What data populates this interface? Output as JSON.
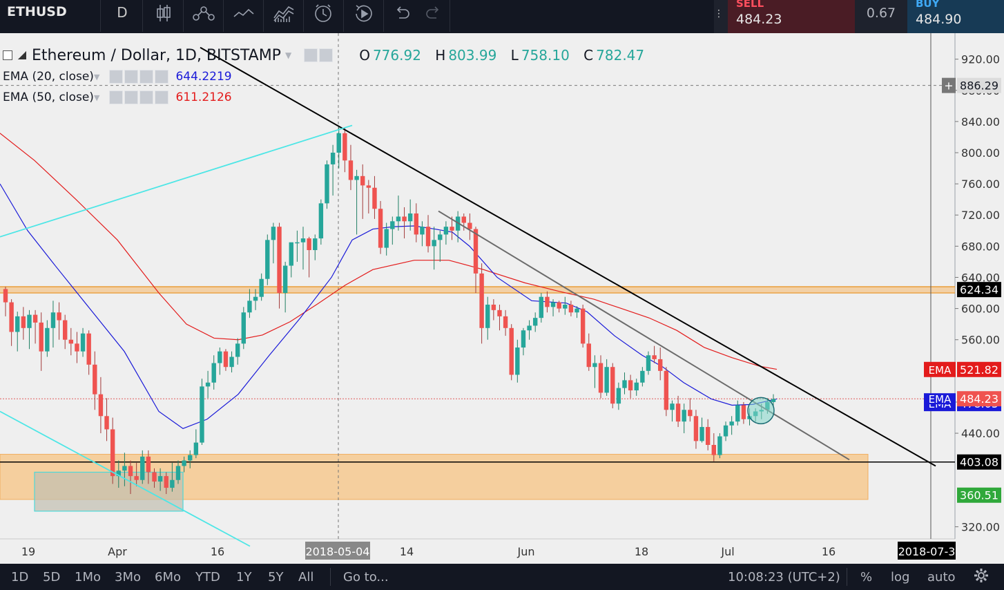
{
  "symbol": "ETHUSD",
  "interval": "D",
  "trade": {
    "sell_label": "SELL",
    "sell_price": "484.23",
    "spread": "0.67",
    "buy_label": "BUY",
    "buy_price": "484.90"
  },
  "legend": {
    "title": "Ethereum / Dollar, 1D, BITSTAMP",
    "ohlc": [
      {
        "key": "O",
        "value": "776.92"
      },
      {
        "key": "H",
        "value": "803.99"
      },
      {
        "key": "L",
        "value": "758.10"
      },
      {
        "key": "C",
        "value": "782.47"
      }
    ],
    "indicators": [
      {
        "name": "EMA (20, close)",
        "value": "644.2219",
        "color": "#1a1ad8"
      },
      {
        "name": "EMA (50, close)",
        "value": "611.2126",
        "color": "#e31b1b"
      }
    ]
  },
  "chart_data": {
    "type": "candlestick",
    "y_range": [
      300,
      935
    ],
    "y_ticks": [
      "320.00",
      "440.00",
      "480.00",
      "560.00",
      "600.00",
      "640.00",
      "680.00",
      "720.00",
      "760.00",
      "800.00",
      "840.00",
      "880.00",
      "920.00"
    ],
    "x_ticks": [
      "19",
      "Apr",
      "16",
      "14",
      "Jun",
      "18",
      "Jul",
      "16"
    ],
    "crosshair_x_label": "2018-05-04",
    "crosshair_price": "886.29",
    "end_date_label": "2018-07-3",
    "candles": [
      [
        625,
        628,
        590,
        608
      ],
      [
        608,
        612,
        552,
        570
      ],
      [
        570,
        596,
        545,
        590
      ],
      [
        590,
        602,
        560,
        575
      ],
      [
        575,
        598,
        548,
        592
      ],
      [
        592,
        598,
        555,
        582
      ],
      [
        582,
        595,
        520,
        545
      ],
      [
        545,
        585,
        538,
        575
      ],
      [
        575,
        610,
        550,
        595
      ],
      [
        595,
        608,
        560,
        585
      ],
      [
        585,
        592,
        548,
        560
      ],
      [
        560,
        575,
        540,
        555
      ],
      [
        555,
        570,
        530,
        545
      ],
      [
        545,
        575,
        538,
        568
      ],
      [
        568,
        572,
        515,
        528
      ],
      [
        528,
        545,
        470,
        490
      ],
      [
        490,
        512,
        440,
        462
      ],
      [
        462,
        485,
        430,
        445
      ],
      [
        445,
        460,
        375,
        385
      ],
      [
        385,
        405,
        370,
        392
      ],
      [
        392,
        415,
        372,
        398
      ],
      [
        398,
        405,
        362,
        385
      ],
      [
        385,
        402,
        372,
        380
      ],
      [
        380,
        418,
        375,
        410
      ],
      [
        410,
        418,
        375,
        390
      ],
      [
        390,
        395,
        370,
        378
      ],
      [
        378,
        395,
        366,
        385
      ],
      [
        385,
        390,
        362,
        370
      ],
      [
        370,
        402,
        365,
        380
      ],
      [
        380,
        405,
        375,
        398
      ],
      [
        398,
        410,
        390,
        405
      ],
      [
        405,
        418,
        395,
        412
      ],
      [
        412,
        445,
        408,
        428
      ],
      [
        428,
        510,
        425,
        500
      ],
      [
        500,
        520,
        485,
        505
      ],
      [
        505,
        540,
        496,
        530
      ],
      [
        530,
        550,
        515,
        545
      ],
      [
        545,
        548,
        520,
        525
      ],
      [
        525,
        545,
        518,
        538
      ],
      [
        538,
        562,
        528,
        555
      ],
      [
        555,
        602,
        548,
        595
      ],
      [
        595,
        625,
        588,
        610
      ],
      [
        610,
        625,
        598,
        615
      ],
      [
        615,
        645,
        610,
        638
      ],
      [
        638,
        695,
        630,
        688
      ],
      [
        688,
        710,
        658,
        705
      ],
      [
        705,
        710,
        600,
        620
      ],
      [
        620,
        660,
        595,
        655
      ],
      [
        655,
        680,
        640,
        685
      ],
      [
        685,
        700,
        660,
        685
      ],
      [
        685,
        705,
        650,
        690
      ],
      [
        690,
        692,
        640,
        675
      ],
      [
        675,
        695,
        662,
        690
      ],
      [
        690,
        740,
        682,
        735
      ],
      [
        735,
        790,
        728,
        785
      ],
      [
        785,
        810,
        745,
        800
      ],
      [
        800,
        834,
        780,
        825
      ],
      [
        825,
        832,
        775,
        790
      ],
      [
        790,
        810,
        752,
        765
      ],
      [
        765,
        778,
        695,
        770
      ],
      [
        770,
        785,
        715,
        758
      ],
      [
        758,
        765,
        722,
        755
      ],
      [
        755,
        770,
        715,
        728
      ],
      [
        728,
        738,
        670,
        678
      ],
      [
        678,
        710,
        668,
        702
      ],
      [
        702,
        718,
        682,
        712
      ],
      [
        712,
        745,
        700,
        718
      ],
      [
        718,
        730,
        690,
        712
      ],
      [
        712,
        740,
        700,
        722
      ],
      [
        722,
        735,
        685,
        695
      ],
      [
        695,
        712,
        680,
        705
      ],
      [
        705,
        720,
        672,
        680
      ],
      [
        680,
        705,
        650,
        688
      ],
      [
        688,
        700,
        660,
        695
      ],
      [
        695,
        712,
        682,
        705
      ],
      [
        705,
        718,
        688,
        700
      ],
      [
        700,
        725,
        685,
        718
      ],
      [
        718,
        722,
        700,
        710
      ],
      [
        710,
        722,
        688,
        702
      ],
      [
        702,
        705,
        620,
        645
      ],
      [
        645,
        658,
        555,
        575
      ],
      [
        575,
        615,
        560,
        605
      ],
      [
        605,
        612,
        585,
        598
      ],
      [
        598,
        605,
        572,
        590
      ],
      [
        590,
        598,
        565,
        575
      ],
      [
        575,
        580,
        508,
        515
      ],
      [
        515,
        560,
        505,
        550
      ],
      [
        550,
        575,
        540,
        572
      ],
      [
        572,
        585,
        560,
        578
      ],
      [
        578,
        595,
        570,
        588
      ],
      [
        588,
        620,
        582,
        615
      ],
      [
        615,
        622,
        595,
        602
      ],
      [
        602,
        612,
        590,
        608
      ],
      [
        608,
        610,
        595,
        600
      ],
      [
        600,
        615,
        592,
        605
      ],
      [
        605,
        610,
        590,
        595
      ],
      [
        595,
        603,
        588,
        600
      ],
      [
        600,
        605,
        550,
        555
      ],
      [
        555,
        568,
        520,
        525
      ],
      [
        525,
        540,
        498,
        530
      ],
      [
        530,
        540,
        485,
        492
      ],
      [
        492,
        535,
        488,
        525
      ],
      [
        525,
        530,
        472,
        478
      ],
      [
        478,
        505,
        470,
        498
      ],
      [
        498,
        518,
        490,
        508
      ],
      [
        508,
        515,
        485,
        495
      ],
      [
        495,
        510,
        488,
        505
      ],
      [
        505,
        525,
        500,
        520
      ],
      [
        520,
        545,
        515,
        540
      ],
      [
        540,
        552,
        530,
        535
      ],
      [
        535,
        550,
        508,
        520
      ],
      [
        520,
        525,
        462,
        470
      ],
      [
        470,
        482,
        455,
        478
      ],
      [
        478,
        488,
        448,
        455
      ],
      [
        455,
        478,
        440,
        470
      ],
      [
        470,
        485,
        455,
        462
      ],
      [
        462,
        470,
        420,
        430
      ],
      [
        430,
        460,
        428,
        448
      ],
      [
        448,
        458,
        418,
        425
      ],
      [
        425,
        440,
        404,
        412
      ],
      [
        412,
        440,
        408,
        436
      ],
      [
        436,
        455,
        430,
        450
      ],
      [
        450,
        462,
        438,
        455
      ],
      [
        455,
        482,
        450,
        476
      ],
      [
        476,
        480,
        452,
        458
      ],
      [
        458,
        472,
        450,
        462
      ],
      [
        462,
        472,
        455,
        468
      ],
      [
        468,
        478,
        458,
        470
      ],
      [
        470,
        485,
        465,
        480
      ],
      [
        480,
        490,
        474,
        484
      ]
    ],
    "ema20": [
      [
        0,
        760
      ],
      [
        40,
        700
      ],
      [
        80,
        655
      ],
      [
        130,
        600
      ],
      [
        180,
        545
      ],
      [
        230,
        468
      ],
      [
        265,
        446
      ],
      [
        300,
        458
      ],
      [
        345,
        490
      ],
      [
        390,
        540
      ],
      [
        435,
        588
      ],
      [
        480,
        640
      ],
      [
        510,
        688
      ],
      [
        540,
        702
      ],
      [
        570,
        705
      ],
      [
        600,
        706
      ],
      [
        630,
        702
      ],
      [
        655,
        698
      ],
      [
        680,
        680
      ],
      [
        720,
        640
      ],
      [
        770,
        610
      ],
      [
        820,
        607
      ],
      [
        850,
        596
      ],
      [
        890,
        565
      ],
      [
        930,
        540
      ],
      [
        960,
        525
      ],
      [
        990,
        505
      ],
      [
        1030,
        484
      ],
      [
        1060,
        476
      ],
      [
        1090,
        477
      ],
      [
        1125,
        484
      ]
    ],
    "ema50": [
      [
        0,
        825
      ],
      [
        50,
        790
      ],
      [
        110,
        740
      ],
      [
        170,
        688
      ],
      [
        230,
        620
      ],
      [
        270,
        580
      ],
      [
        310,
        562
      ],
      [
        345,
        560
      ],
      [
        380,
        566
      ],
      [
        420,
        583
      ],
      [
        460,
        606
      ],
      [
        500,
        630
      ],
      [
        540,
        650
      ],
      [
        600,
        662
      ],
      [
        650,
        662
      ],
      [
        700,
        650
      ],
      [
        760,
        633
      ],
      [
        810,
        622
      ],
      [
        860,
        612
      ],
      [
        900,
        600
      ],
      [
        940,
        588
      ],
      [
        980,
        572
      ],
      [
        1020,
        550
      ],
      [
        1060,
        537
      ],
      [
        1100,
        526
      ],
      [
        1125,
        522
      ]
    ],
    "horizontal_levels": [
      {
        "label": "624.34",
        "value": 624.34,
        "color": "#f5a623"
      },
      {
        "label": "403.08",
        "value": 403.08,
        "color": "#000000"
      }
    ],
    "ema_tags": [
      {
        "label": "EMA",
        "value": "521.82",
        "color": "#e31b1b"
      },
      {
        "label": "EMA",
        "value": "478.05",
        "color": "#1a1ad8"
      }
    ],
    "last_price": "484.23",
    "zone_price": "360.51"
  },
  "bottom": {
    "ranges": [
      "1D",
      "5D",
      "1Mo",
      "3Mo",
      "6Mo",
      "YTD",
      "1Y",
      "5Y",
      "All"
    ],
    "goto": "Go to...",
    "time": "10:08:23 (UTC+2)",
    "percent": "%",
    "log": "log",
    "auto": "auto"
  },
  "icons": [
    "candles-icon",
    "indicators-icon",
    "compare-icon",
    "draw-line-icon",
    "alert-icon",
    "replay-icon",
    "undo-icon",
    "redo-icon",
    "settings-icon"
  ]
}
